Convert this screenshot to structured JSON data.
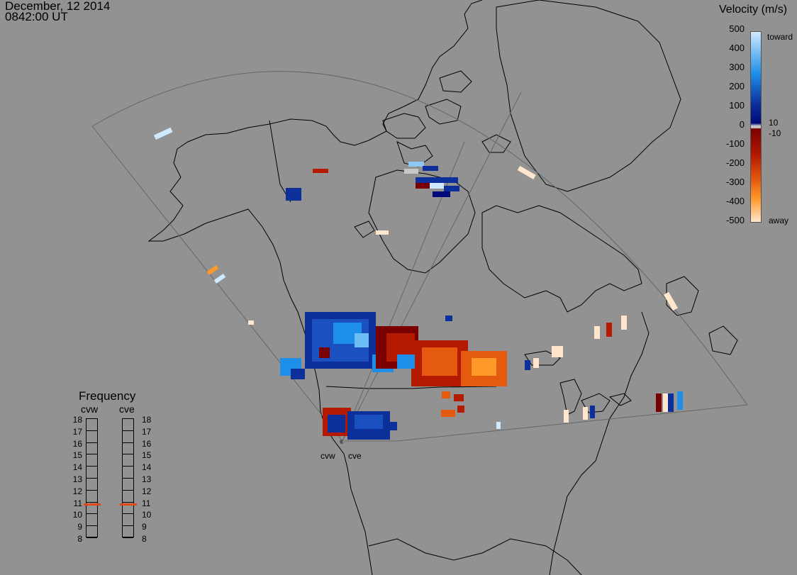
{
  "header": {
    "date": "December, 12 2014",
    "time": "0842:00 UT"
  },
  "velocity_scale": {
    "title": "Velocity (m/s)",
    "ticks": [
      "500",
      "400",
      "300",
      "200",
      "100",
      "0",
      "-100",
      "-200",
      "-300",
      "-400",
      "-500"
    ],
    "inner_ticks": [
      "10",
      "-10"
    ],
    "toward_label": "toward",
    "away_label": "away",
    "colors": {
      "toward_max": "#cfe9ff",
      "toward_mid": "#1e8fe8",
      "toward_low": "#0d2f9a",
      "toward_min": "#000a7a",
      "zero": "#c8c8c8",
      "away_min": "#7a0000",
      "away_low": "#b41a00",
      "away_mid": "#e45b10",
      "away_high": "#ff9a2a",
      "away_max": "#ffe6cc"
    }
  },
  "frequency_panel": {
    "title": "Frequency",
    "radars": [
      {
        "name": "cvw",
        "current_mhz": 10.8
      },
      {
        "name": "cve",
        "current_mhz": 10.8
      }
    ],
    "levels": [
      "18",
      "17",
      "16",
      "15",
      "14",
      "13",
      "12",
      "11",
      "10",
      "9",
      "8"
    ],
    "marker_color": "#e04a17"
  },
  "sites": [
    {
      "label": "cvw"
    },
    {
      "label": "cve"
    }
  ]
}
